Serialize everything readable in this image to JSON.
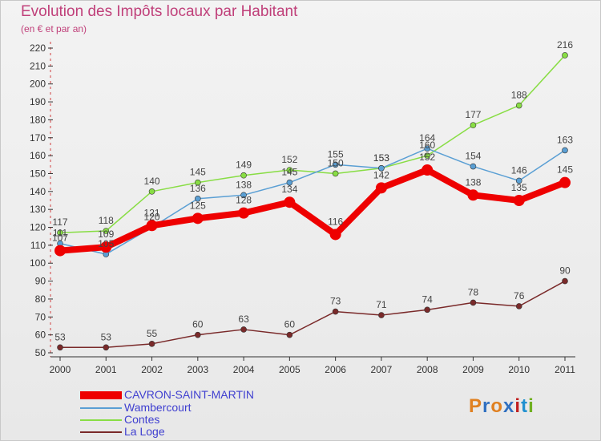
{
  "title": "Evolution des Impôts locaux par Habitant",
  "subtitle": "(en € et par an)",
  "logo": {
    "text": "Proxiti",
    "letters": [
      "P",
      "r",
      "o",
      "x",
      "i",
      "t",
      "i"
    ],
    "colors": [
      "#e08020",
      "#3070c0",
      "#e08020",
      "#3070c0",
      "#c02020",
      "#2090d0",
      "#70b020"
    ]
  },
  "chart_data": {
    "type": "line",
    "title": "Evolution des Impôts locaux par Habitant",
    "subtitle": "(en € et par an)",
    "x": [
      "2000",
      "2001",
      "2002",
      "2003",
      "2004",
      "2005",
      "2006",
      "2007",
      "2008",
      "2009",
      "2010",
      "2011"
    ],
    "ylim": [
      50,
      220
    ],
    "yticks": [
      50,
      60,
      70,
      80,
      90,
      100,
      110,
      120,
      130,
      140,
      150,
      160,
      170,
      180,
      190,
      200,
      210,
      220
    ],
    "grid": false,
    "legend_position": "bottom-left",
    "series": [
      {
        "name": "CAVRON-SAINT-MARTIN",
        "color": "#ee0000",
        "width": 8,
        "values": [
          107,
          109,
          121,
          125,
          128,
          134,
          116,
          142,
          152,
          138,
          135,
          145
        ]
      },
      {
        "name": "Wambercourt",
        "color": "#5a9fd4",
        "width": 1.5,
        "values": [
          111,
          105,
          120,
          136,
          138,
          145,
          155,
          153,
          164,
          154,
          146,
          163
        ]
      },
      {
        "name": "Contes",
        "color": "#88dd44",
        "width": 1.5,
        "values": [
          117,
          118,
          140,
          145,
          149,
          152,
          150,
          153,
          160,
          177,
          188,
          216
        ]
      },
      {
        "name": "La Loge",
        "color": "#7a2a2a",
        "width": 1.5,
        "values": [
          53,
          53,
          55,
          60,
          63,
          60,
          73,
          71,
          74,
          78,
          76,
          90
        ]
      }
    ]
  }
}
